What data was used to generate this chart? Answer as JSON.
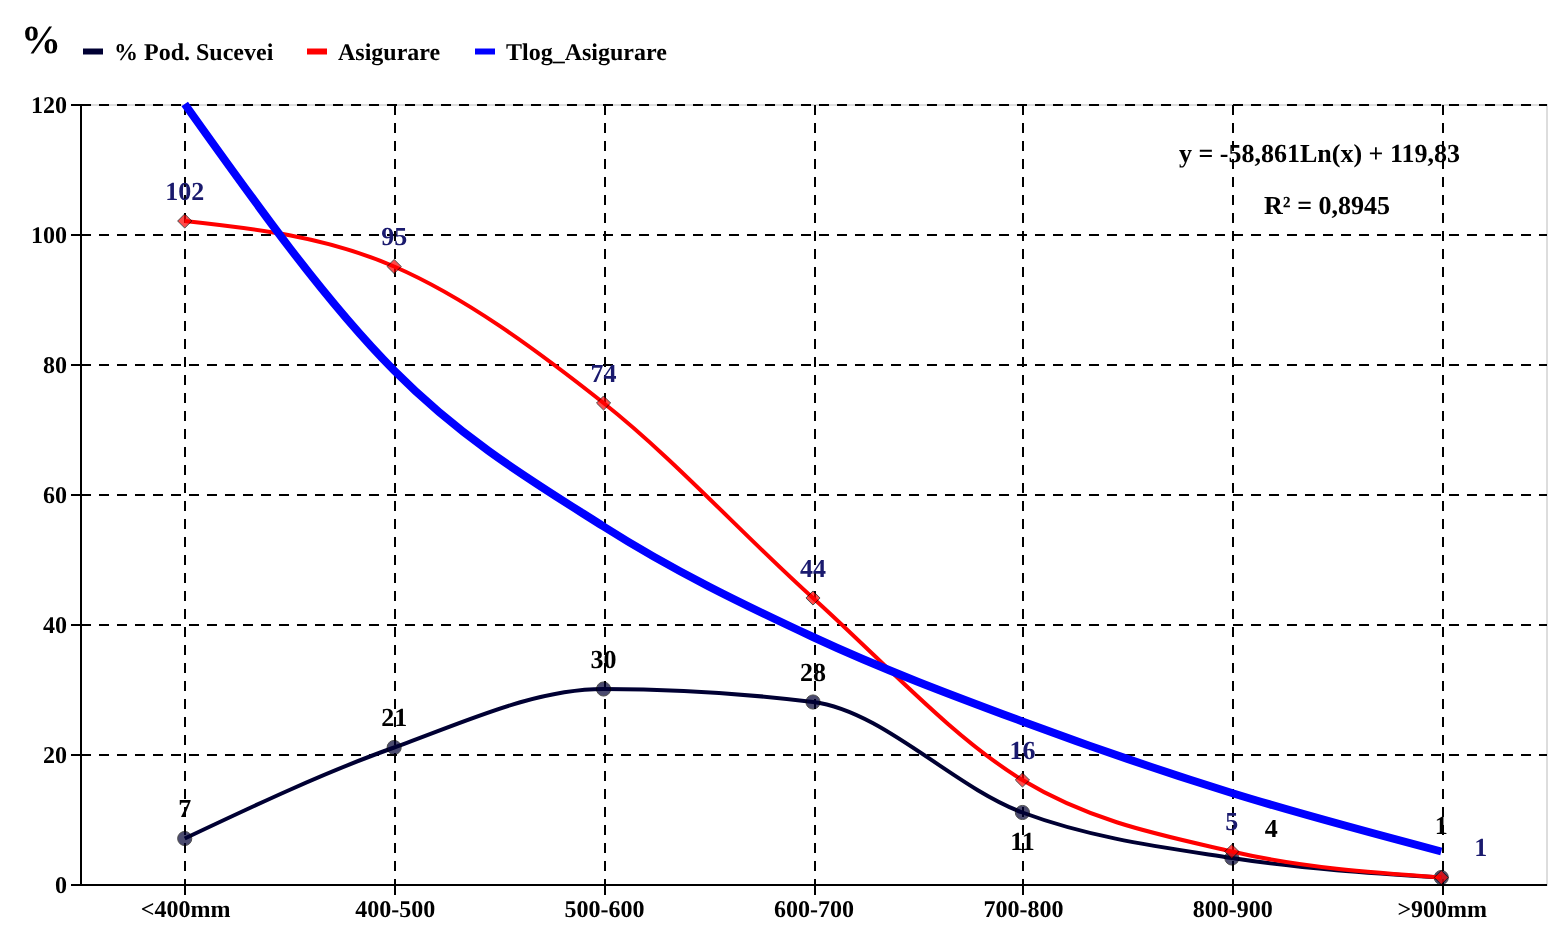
{
  "chart_data": {
    "type": "line",
    "ylabel": "%",
    "categories": [
      "<400mm",
      "400-500",
      "500-600",
      "600-700",
      "700-800",
      "800-900",
      ">900mm"
    ],
    "series": [
      {
        "name": "% Pod. Sucevei",
        "color": "#000033",
        "marker": "circle",
        "values": [
          7,
          21,
          30,
          28,
          11,
          4,
          1
        ],
        "value_labels": [
          "7",
          "21",
          "30",
          "28",
          "11",
          "4",
          "1"
        ]
      },
      {
        "name": "Asigurare",
        "color": "#ff0000",
        "marker": "diamond",
        "values": [
          102,
          95,
          74,
          44,
          16,
          5,
          1
        ],
        "value_labels": [
          "102",
          "95",
          "74",
          "44",
          "16",
          "5",
          "1"
        ]
      },
      {
        "name": "Tlog_Asigurare",
        "color": "#0000ff",
        "marker": "none",
        "values": [
          120,
          79,
          55,
          38,
          25,
          14,
          5
        ]
      }
    ],
    "ylim": [
      0,
      120
    ],
    "yticks": [
      0,
      20,
      40,
      60,
      80,
      100,
      120
    ],
    "grid": true,
    "legend": "top",
    "line_style": "solid",
    "annotations": [
      "y = -58,861Ln(x) + 119,83",
      "R² = 0,8945"
    ]
  }
}
